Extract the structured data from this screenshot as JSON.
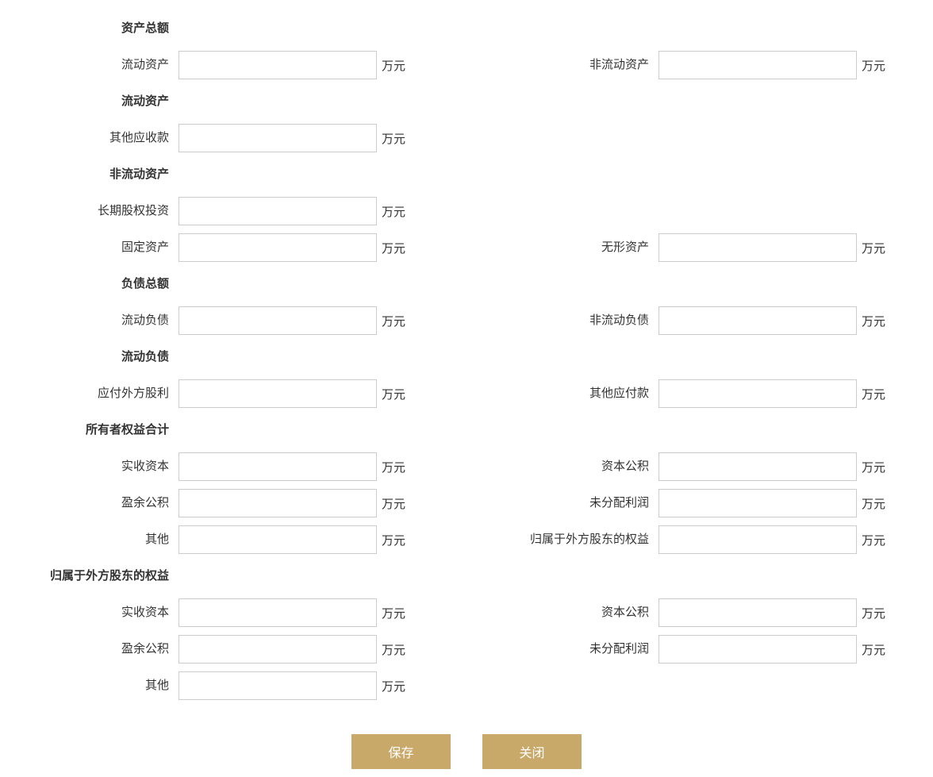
{
  "unit": "万元",
  "sections": {
    "s0_header": "资产总额",
    "s0_l1": "流动资产",
    "s0_r1": "非流动资产",
    "s1_header": "流动资产",
    "s1_l1": "其他应收款",
    "s2_header": "非流动资产",
    "s2_l1": "长期股权投资",
    "s2_l2": "固定资产",
    "s2_r2": "无形资产",
    "s3_header": "负债总额",
    "s3_l1": "流动负债",
    "s3_r1": "非流动负债",
    "s4_header": "流动负债",
    "s4_l1": "应付外方股利",
    "s4_r1": "其他应付款",
    "s5_header": "所有者权益合计",
    "s5_l1": "实收资本",
    "s5_r1": "资本公积",
    "s5_l2": "盈余公积",
    "s5_r2": "未分配利润",
    "s5_l3": "其他",
    "s5_r3": "归属于外方股东的权益",
    "s6_header": "归属于外方股东的权益",
    "s6_l1": "实收资本",
    "s6_r1": "资本公积",
    "s6_l2": "盈余公积",
    "s6_r2": "未分配利润",
    "s6_l3": "其他"
  },
  "buttons": {
    "save": "保存",
    "close": "关闭"
  },
  "colors": {
    "button_bg": "#c9a96a",
    "button_text": "#ffffff",
    "input_border": "#cccccc",
    "text": "#333333",
    "background": "#ffffff"
  }
}
